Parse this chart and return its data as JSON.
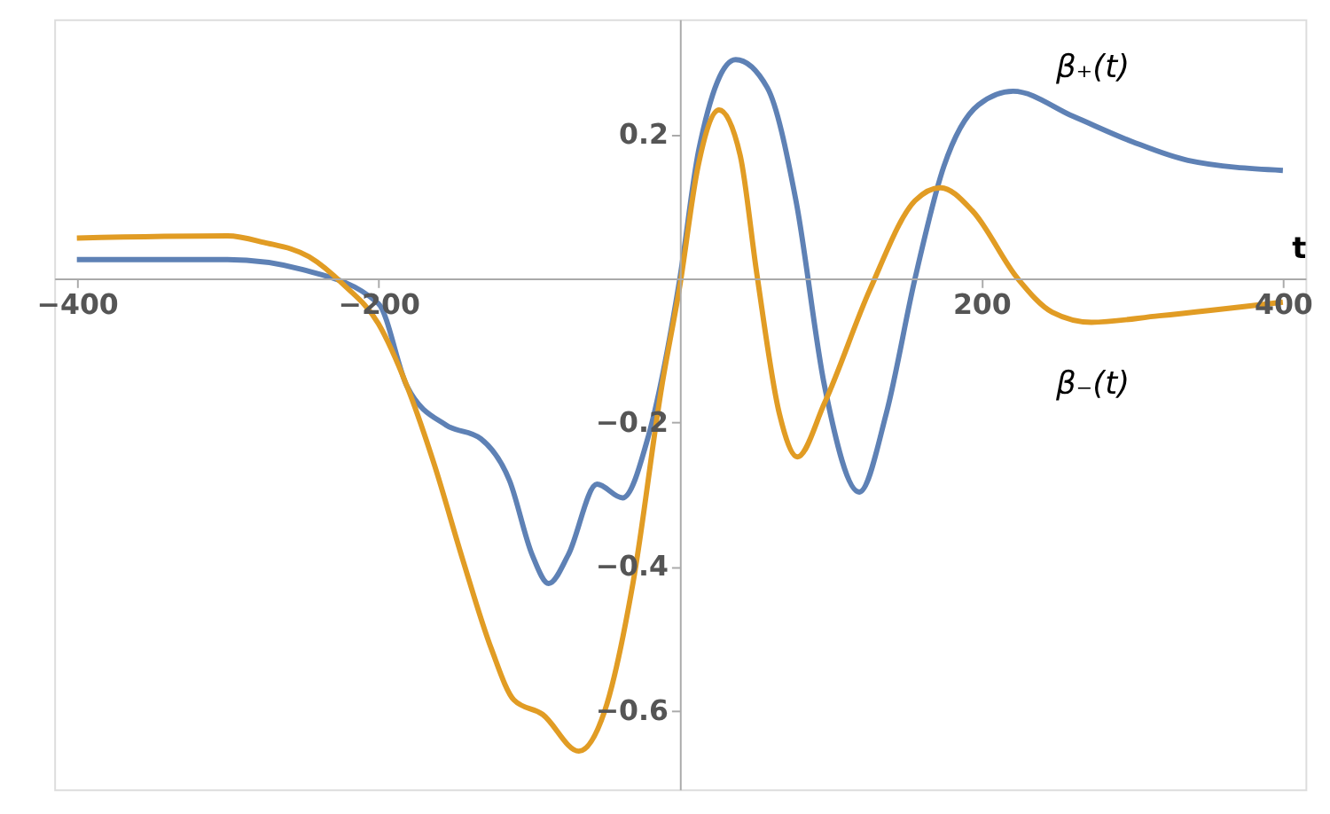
{
  "chart_data": {
    "type": "line",
    "xlabel": "t",
    "xlim": [
      -415,
      415
    ],
    "ylim": [
      -0.71,
      0.36
    ],
    "xticks": [
      -400,
      -200,
      200,
      400
    ],
    "yticks": [
      -0.6,
      -0.4,
      -0.2,
      0.2
    ],
    "grid": false,
    "marker": "none",
    "line_style": "solid",
    "series": [
      {
        "name": "β₊(t)",
        "color": "#5e81b5",
        "x": [
          -400,
          -350,
          -300,
          -250,
          -200,
          -181,
          -155,
          -132,
          -113,
          -98,
          -87,
          -74,
          -55,
          -38,
          -21,
          0,
          12.5,
          37,
          58,
          77,
          96,
          119,
          137,
          156,
          175,
          198,
          221,
          261,
          300,
          337,
          400
        ],
        "values": [
          0.026,
          0.026,
          0.026,
          0.012,
          -0.035,
          -0.15,
          -0.204,
          -0.223,
          -0.281,
          -0.384,
          -0.424,
          -0.384,
          -0.286,
          -0.305,
          -0.22,
          0,
          0.178,
          0.304,
          0.265,
          0.108,
          -0.15,
          -0.297,
          -0.187,
          0,
          0.155,
          0.241,
          0.26,
          0.225,
          0.19,
          0.164,
          0.15
        ]
      },
      {
        "name": "β₋(t)",
        "color": "#e19c24",
        "x": [
          -400,
          -300,
          -276,
          -246,
          -223,
          -200,
          -181,
          -163,
          -144,
          -125,
          -110,
          -91,
          -67,
          -50,
          -31,
          -12,
          0,
          12,
          26,
          40,
          51,
          66,
          78,
          96,
          126,
          156,
          173,
          194,
          224,
          247,
          273,
          318,
          400
        ],
        "values": [
          0.056,
          0.059,
          0.05,
          0.03,
          -0.009,
          -0.063,
          -0.15,
          -0.258,
          -0.391,
          -0.515,
          -0.586,
          -0.606,
          -0.657,
          -0.602,
          -0.422,
          -0.15,
          -0.01,
          0.155,
          0.234,
          0.171,
          0.007,
          -0.188,
          -0.248,
          -0.173,
          -0.016,
          0.108,
          0.126,
          0.094,
          0,
          -0.047,
          -0.061,
          -0.052,
          -0.033
        ]
      }
    ]
  }
}
